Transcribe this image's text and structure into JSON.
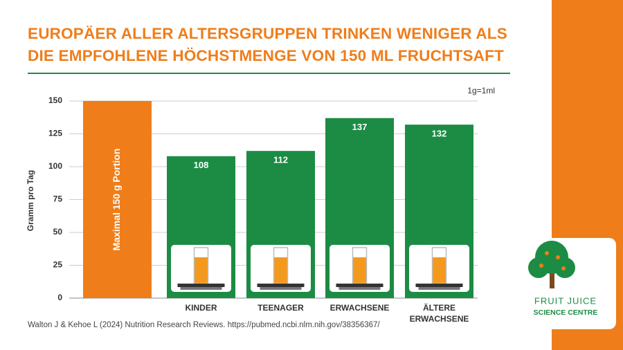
{
  "chart_data": {
    "type": "bar",
    "title": [
      "EUROPÄER ALLER ALTERSGRUPPEN TRINKEN WENIGER ALS",
      "DIE EMPFOHLENE HÖCHSTMENGE VON 150 ML FRUCHTSAFT"
    ],
    "y_label": "Gramm pro Tag",
    "unit_note": "1g=1ml",
    "bar_annotation": "Maximal 150 g Portion",
    "categories": [
      null,
      "KINDER",
      "TEENAGER",
      "ERWACHSENE",
      "ÄLTERE ERWACHSENE"
    ],
    "values": [
      150,
      108,
      112,
      137,
      132
    ],
    "value_labels": [
      null,
      "108",
      "112",
      "137",
      "132"
    ],
    "colors": [
      "#EF7D1A",
      "#1C8C44",
      "#1C8C44",
      "#1C8C44",
      "#1C8C44"
    ],
    "ylim": [
      0,
      150
    ],
    "yticks": [
      0,
      25,
      50,
      75,
      100,
      125,
      150
    ],
    "grid": true,
    "source": "Walton J & Kehoe L (2024) Nutrition Research Reviews. https://pubmed.ncbi.nlm.nih.gov/38356367/"
  },
  "logo": {
    "line1": "FRUIT JUICE",
    "line2": "SCIENCE CENTRE"
  }
}
